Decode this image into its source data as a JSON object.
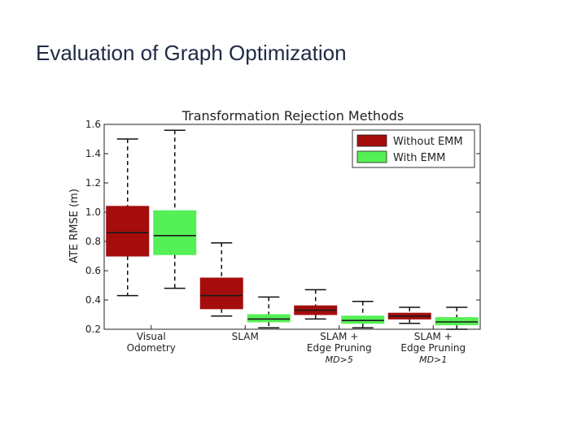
{
  "slide": {
    "title": "Evaluation of Graph Optimization"
  },
  "chart_data": {
    "type": "box",
    "title": "Transformation Rejection Methods",
    "ylabel": "ATE RMSE (m)",
    "xlabel": "",
    "ylim": [
      0.2,
      1.6
    ],
    "yticks": [
      0.2,
      0.4,
      0.6,
      0.8,
      1.0,
      1.2,
      1.4,
      1.6
    ],
    "ytick_labels": [
      "0.2",
      "0.4",
      "0.6",
      "0.8",
      "1.0",
      "1.2",
      "1.4",
      "1.6"
    ],
    "legend_position": "top-right",
    "grid": false,
    "categories": [
      {
        "lines": [
          "Visual",
          "Odometry"
        ],
        "sub": ""
      },
      {
        "lines": [
          "SLAM"
        ],
        "sub": ""
      },
      {
        "lines": [
          "SLAM +",
          "Edge Pruning"
        ],
        "sub": "MD>5"
      },
      {
        "lines": [
          "SLAM +",
          "Edge Pruning"
        ],
        "sub": "MD>1"
      }
    ],
    "series": [
      {
        "name": "Without EMM",
        "color": "#a50d0d",
        "median_color": "#1a1a1a",
        "boxes": [
          {
            "whisker_low": 0.43,
            "q1": 0.7,
            "median": 0.86,
            "q3": 1.04,
            "whisker_high": 1.5
          },
          {
            "whisker_low": 0.29,
            "q1": 0.34,
            "median": 0.43,
            "q3": 0.55,
            "whisker_high": 0.79
          },
          {
            "whisker_low": 0.27,
            "q1": 0.3,
            "median": 0.33,
            "q3": 0.36,
            "whisker_high": 0.47
          },
          {
            "whisker_low": 0.24,
            "q1": 0.27,
            "median": 0.29,
            "q3": 0.31,
            "whisker_high": 0.35
          }
        ]
      },
      {
        "name": "With EMM",
        "color": "#55f055",
        "median_color": "#1a1a1a",
        "boxes": [
          {
            "whisker_low": 0.48,
            "q1": 0.71,
            "median": 0.84,
            "q3": 1.01,
            "whisker_high": 1.56
          },
          {
            "whisker_low": 0.21,
            "q1": 0.25,
            "median": 0.27,
            "q3": 0.3,
            "whisker_high": 0.42
          },
          {
            "whisker_low": 0.21,
            "q1": 0.24,
            "median": 0.26,
            "q3": 0.29,
            "whisker_high": 0.39
          },
          {
            "whisker_low": 0.2,
            "q1": 0.23,
            "median": 0.25,
            "q3": 0.28,
            "whisker_high": 0.35
          }
        ]
      }
    ]
  }
}
